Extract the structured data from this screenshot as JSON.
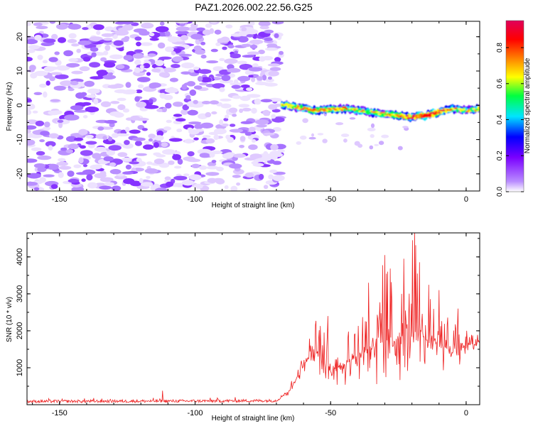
{
  "title": "PAZ1.2026.002.22.56.G25",
  "chart_data": [
    {
      "type": "heatmap",
      "xlabel": "Height of straight line (km)",
      "ylabel": "Frequency (Hz)",
      "xlim": [
        -162,
        5
      ],
      "ylim": [
        -25,
        24.5
      ],
      "xticks": [
        -150,
        -100,
        -50,
        0
      ],
      "yticks": [
        -20,
        -10,
        0,
        10,
        20
      ],
      "noise_region_x": [
        -162,
        -68
      ],
      "signal_region_x": [
        -68,
        5
      ],
      "signal_trace": {
        "x": [
          -68,
          -60,
          -55,
          -50,
          -45,
          -40,
          -35,
          -30,
          -25,
          -20,
          -15,
          -10,
          -5,
          0,
          5
        ],
        "frequency": [
          0.3,
          -1.0,
          -1.5,
          -1.2,
          -1.0,
          -1.5,
          -2.0,
          -2.5,
          -3.0,
          -3.5,
          -3.0,
          -2.0,
          -1.0,
          -1.5,
          -1.0
        ],
        "amplitude": [
          0.55,
          0.6,
          0.65,
          0.6,
          0.62,
          0.5,
          0.55,
          0.6,
          0.65,
          0.7,
          0.9,
          0.75,
          0.6,
          0.5,
          0.55
        ]
      },
      "colorbar": {
        "label": "Normalized spectral amplitude",
        "ticks": [
          "0.0",
          "0.2",
          "0.4",
          "0.6",
          "0.8"
        ],
        "range": [
          0,
          0.95
        ],
        "colors": [
          "#ffffff",
          "#7a00ff",
          "#0000ff",
          "#00e5ff",
          "#00ff40",
          "#ffff00",
          "#ff8000",
          "#ff0000",
          "#e0005a"
        ]
      }
    },
    {
      "type": "line",
      "xlabel": "Height of straight line (km)",
      "ylabel": "SNR (10 * v/v)",
      "xlim": [
        -162,
        5
      ],
      "ylim": [
        0,
        4650
      ],
      "xticks": [
        -150,
        -100,
        -50,
        0
      ],
      "yticks": [
        1000,
        2000,
        3000,
        4000
      ],
      "line_color": "#ee2222",
      "envelope": {
        "x": [
          -162,
          -100,
          -70,
          -65,
          -62,
          -58,
          -55,
          -50,
          -45,
          -40,
          -35,
          -30,
          -25,
          -20,
          -15,
          -10,
          -5,
          -2,
          0,
          5
        ],
        "mean": [
          90,
          100,
          110,
          400,
          800,
          1300,
          1400,
          900,
          1100,
          1300,
          1600,
          1700,
          1800,
          2000,
          1800,
          1700,
          1400,
          1500,
          1600,
          1700
        ],
        "peak": [
          180,
          300,
          150,
          600,
          1200,
          1900,
          2400,
          1800,
          2100,
          2400,
          3300,
          4050,
          3700,
          4700,
          3500,
          3100,
          2100,
          2600,
          2000,
          2000
        ]
      },
      "spikes": [
        {
          "x": -112,
          "y": 380
        },
        {
          "x": -64,
          "y": 500
        },
        {
          "x": -51,
          "y": 2400
        },
        {
          "x": -36,
          "y": 3300
        },
        {
          "x": -30,
          "y": 4050
        },
        {
          "x": -29,
          "y": 3600
        },
        {
          "x": -23,
          "y": 3950
        },
        {
          "x": -19,
          "y": 4700
        },
        {
          "x": -18,
          "y": 3550
        },
        {
          "x": -10,
          "y": 3100
        },
        {
          "x": -3,
          "y": 2600
        }
      ]
    }
  ]
}
